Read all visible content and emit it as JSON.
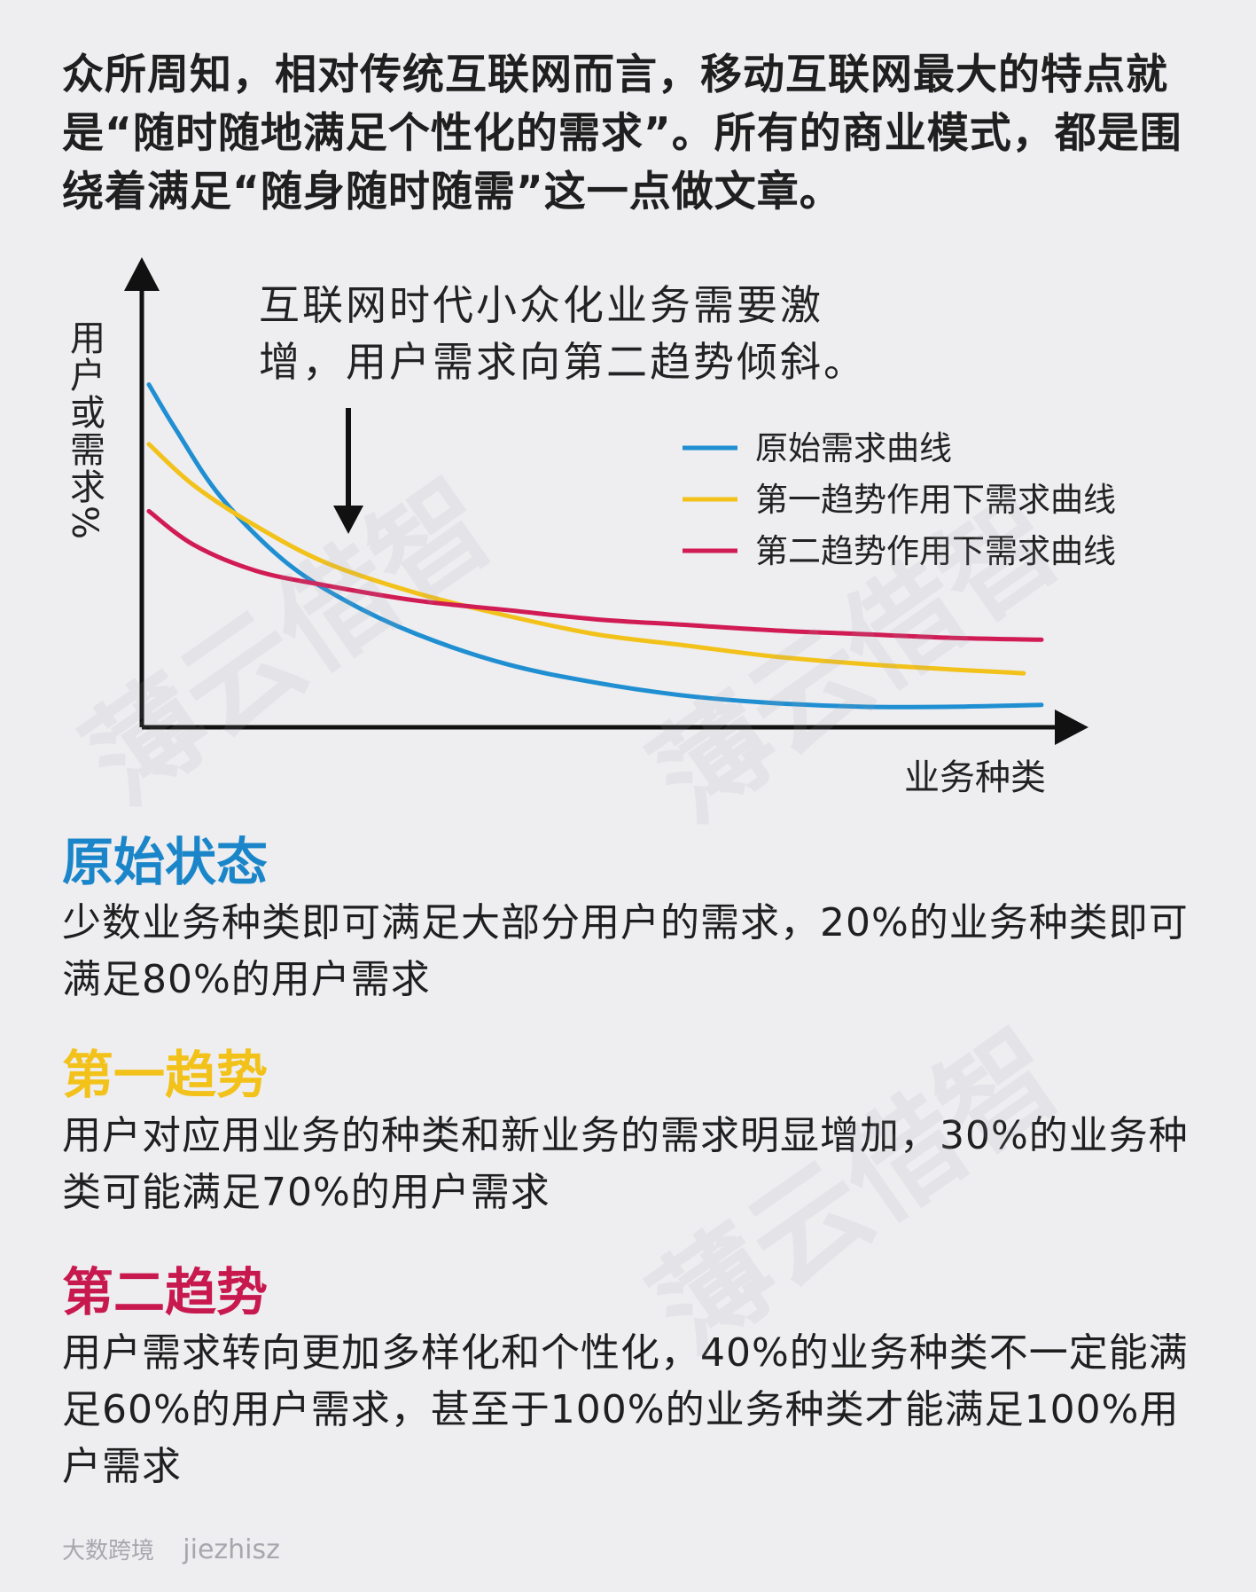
{
  "intro": "众所周知，相对传统互联网而言，移动互联网最大的特点就是“随时随地满足个性化的需求”。所有的商业模式，都是围绕着满足“随身随时随需”这一点做文章。",
  "chart_data": {
    "type": "line",
    "ylabel": "用户或需求%",
    "xlabel": "业务种类",
    "annotation": "互联网时代小众化业务需要激增，用户需求向第二趋势倾斜。",
    "legend_position": "right",
    "series": [
      {
        "name": "原始需求曲线",
        "color": "#1f8fd2",
        "points": [
          [
            0,
            92
          ],
          [
            3,
            80
          ],
          [
            8,
            62
          ],
          [
            15,
            45
          ],
          [
            22,
            34
          ],
          [
            30,
            25
          ],
          [
            40,
            17
          ],
          [
            50,
            12
          ],
          [
            60,
            8.5
          ],
          [
            70,
            6.5
          ],
          [
            80,
            5.5
          ],
          [
            90,
            5.5
          ],
          [
            100,
            6
          ]
        ]
      },
      {
        "name": "第一趋势作用下需求曲线",
        "color": "#f2c21a",
        "points": [
          [
            0,
            76
          ],
          [
            5,
            65
          ],
          [
            12,
            54
          ],
          [
            20,
            44
          ],
          [
            30,
            36
          ],
          [
            40,
            30
          ],
          [
            50,
            25
          ],
          [
            60,
            22
          ],
          [
            70,
            19
          ],
          [
            80,
            17
          ],
          [
            90,
            15.5
          ],
          [
            98,
            14.5
          ]
        ]
      },
      {
        "name": "第二趋势作用下需求曲线",
        "color": "#d11b55",
        "points": [
          [
            0,
            58
          ],
          [
            5,
            49
          ],
          [
            12,
            42
          ],
          [
            20,
            38
          ],
          [
            30,
            34
          ],
          [
            40,
            31.5
          ],
          [
            50,
            29
          ],
          [
            60,
            27.5
          ],
          [
            70,
            26
          ],
          [
            80,
            25
          ],
          [
            90,
            24
          ],
          [
            100,
            23.5
          ]
        ]
      }
    ]
  },
  "sections": [
    {
      "title": "原始状态",
      "color": "#1a86c9",
      "body": "少数业务种类即可满足大部分用户的需求，20%的业务种类即可满足80%的用户需求"
    },
    {
      "title": "第一趋势",
      "color": "#f2c21a",
      "body": "用户对应用业务的种类和新业务的需求明显增加，30%的业务种类可能满足70%的用户需求"
    },
    {
      "title": "第二趋势",
      "color": "#c8194f",
      "body": "用户需求转向更加多样化和个性化，40%的业务种类不一定能满足60%的用户需求，甚至于100%的业务种类才能满足100%用户需求"
    }
  ],
  "watermark": "薄云借智",
  "footer": {
    "brand": "大数跨境",
    "wechat": "jiezhisz"
  }
}
